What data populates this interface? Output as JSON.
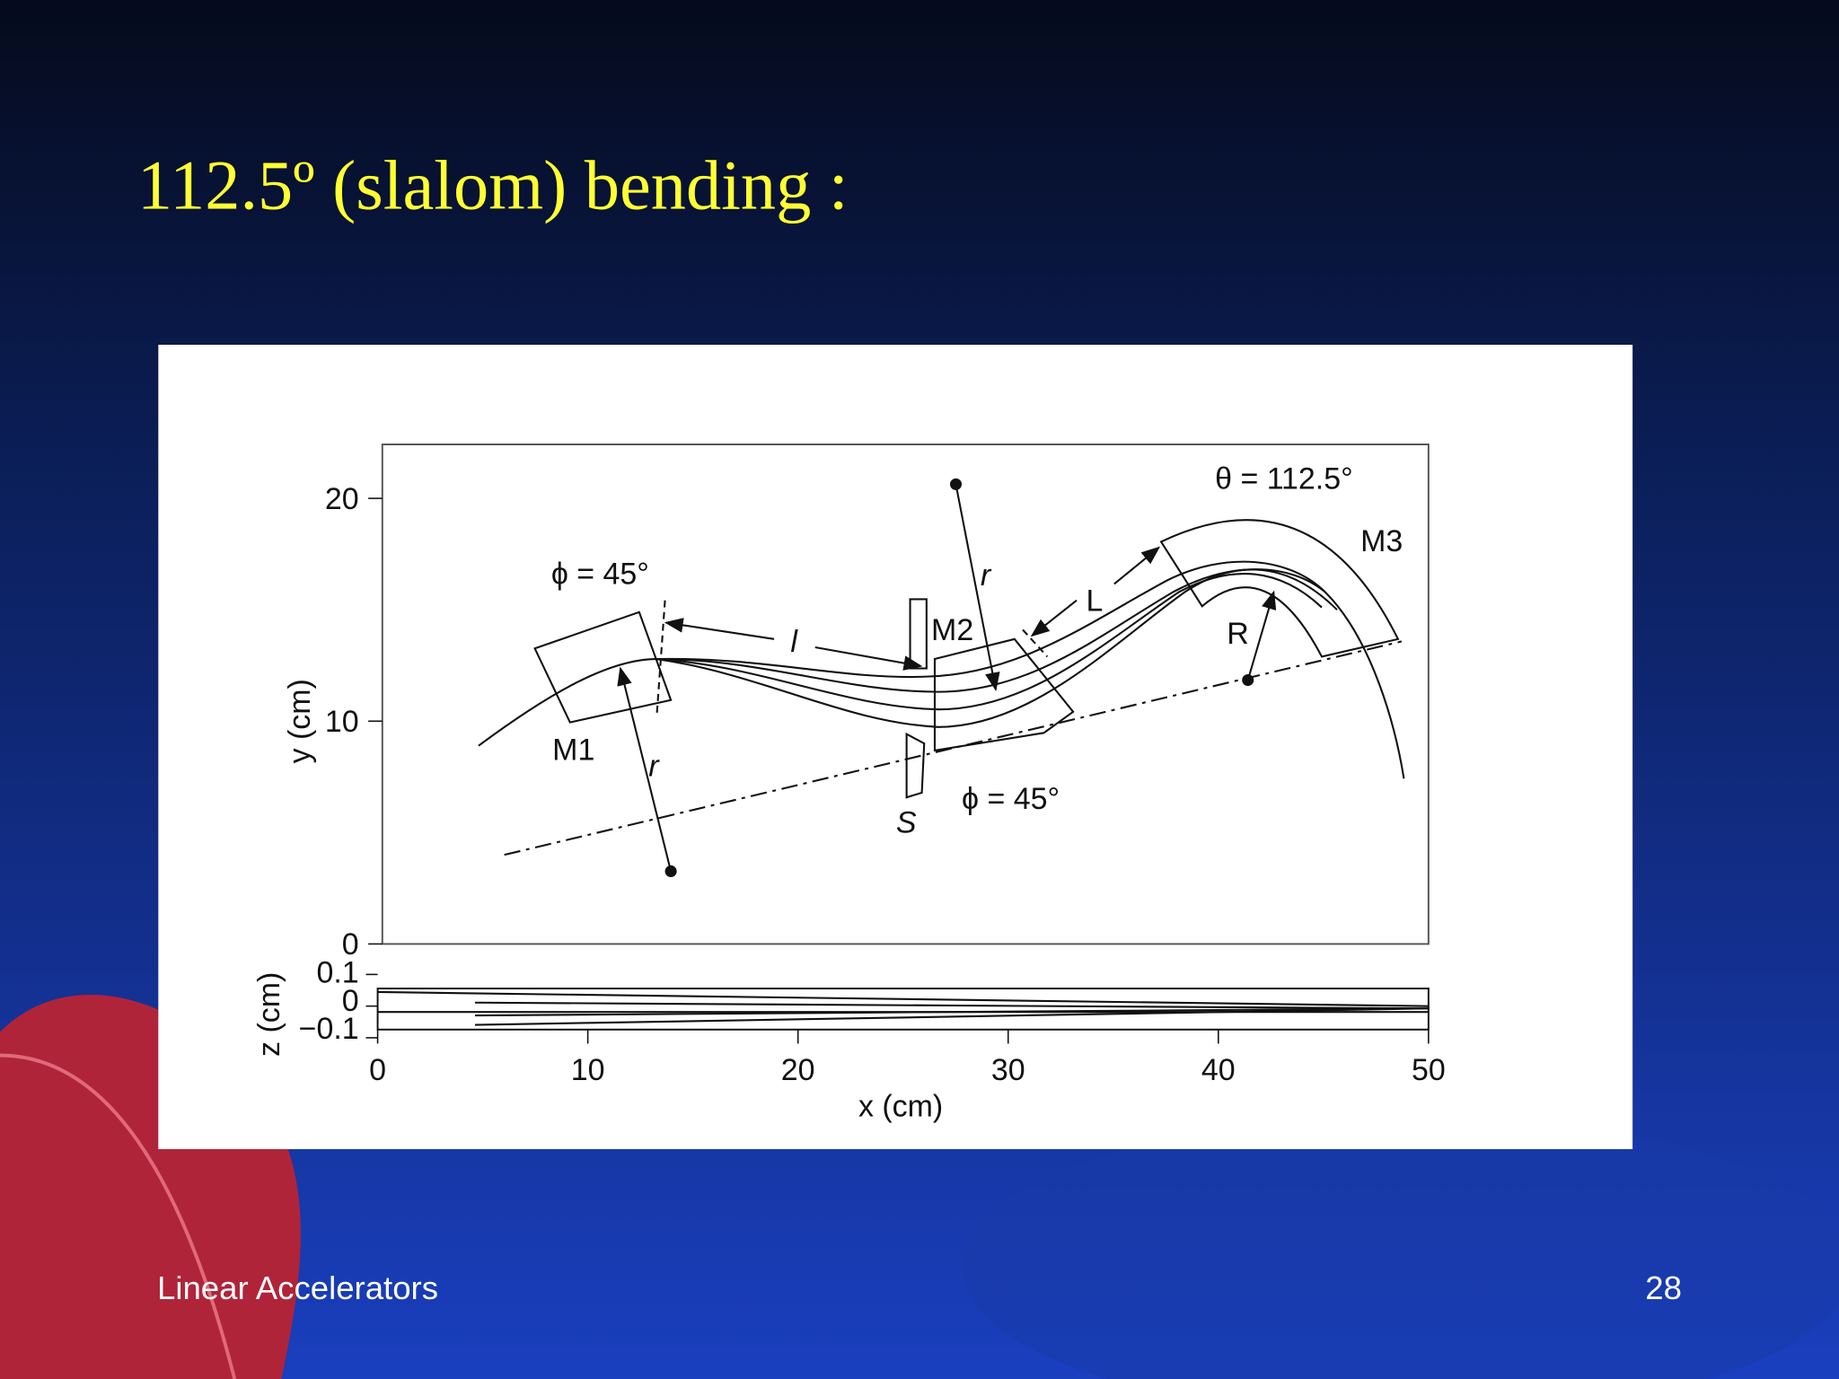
{
  "header": {
    "title": "112.5º (slalom) bending :"
  },
  "figure": {
    "labels": {
      "phi_m1": "ϕ = 45°",
      "phi_m2": "ϕ = 45°",
      "theta": "θ = 112.5°",
      "m1": "M1",
      "m2": "M2",
      "m3": "M3",
      "r_m1": "r",
      "r_m2": "r",
      "l": "l",
      "big_l": "L",
      "big_r": "R",
      "s": "S"
    },
    "y_axis": {
      "label": "y (cm)",
      "ticks": [
        "20",
        "10",
        "0"
      ]
    },
    "z_axis": {
      "label": "z (cm)",
      "ticks": [
        "0.1",
        "0",
        "−0.1"
      ]
    },
    "x_axis": {
      "label": "x (cm)",
      "ticks": [
        "0",
        "10",
        "20",
        "30",
        "40",
        "50"
      ]
    }
  },
  "footer": {
    "left": "Linear Accelerators",
    "page": "28"
  }
}
